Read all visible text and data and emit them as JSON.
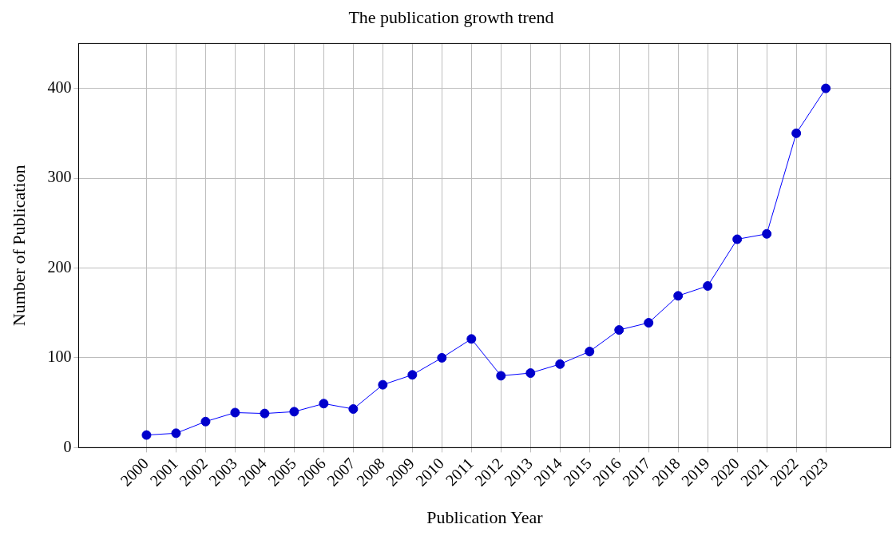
{
  "chart_data": {
    "type": "line",
    "title": "The publication growth trend",
    "xlabel": "Publication Year",
    "ylabel": "Number of Publication",
    "x": [
      2000,
      2001,
      2002,
      2003,
      2004,
      2005,
      2006,
      2007,
      2008,
      2009,
      2010,
      2011,
      2012,
      2013,
      2014,
      2015,
      2016,
      2017,
      2018,
      2019,
      2020,
      2021,
      2022,
      2023
    ],
    "series": [
      {
        "color": "#0000ff",
        "values": [
          14,
          16,
          29,
          39,
          38,
          40,
          49,
          43,
          70,
          81,
          100,
          121,
          80,
          83,
          93,
          107,
          131,
          139,
          169,
          180,
          232,
          238,
          350,
          400
        ]
      }
    ],
    "xlim": [
      1997.7,
      2025.2
    ],
    "xticks": [
      2000,
      2001,
      2002,
      2003,
      2004,
      2005,
      2006,
      2007,
      2008,
      2009,
      2010,
      2011,
      2012,
      2013,
      2014,
      2015,
      2016,
      2017,
      2018,
      2019,
      2020,
      2021,
      2022,
      2023
    ],
    "ylim": [
      0,
      450
    ],
    "yticks": [
      0,
      100,
      200,
      300,
      400
    ],
    "grid": true,
    "marker": "circle",
    "line_style": "solid"
  }
}
